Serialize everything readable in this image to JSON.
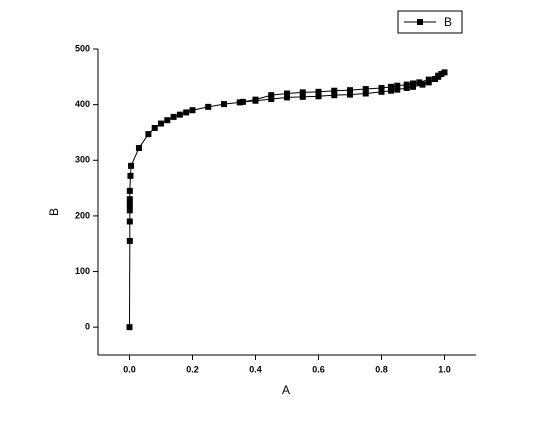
{
  "chart_data": {
    "type": "line",
    "x_label": "A",
    "y_label": "B",
    "xlim": [
      -0.1,
      1.1
    ],
    "ylim": [
      -50,
      500
    ],
    "xticks": [
      {
        "value": 0,
        "label": "0.0"
      },
      0.2,
      0.4,
      0.6,
      0.8,
      {
        "value": 1,
        "label": "1.0"
      }
    ],
    "yticks": [
      0,
      100,
      200,
      300,
      400,
      500
    ],
    "legend": "top-right",
    "series": [
      {
        "name": "B",
        "color": "#000000",
        "x": [
          0,
          0.001,
          0.001,
          0.001,
          0.001,
          0.001,
          0.001,
          0.003,
          0.005,
          0.03,
          0.06,
          0.08,
          0.1,
          0.12,
          0.14,
          0.16,
          0.18,
          0.2,
          0.25,
          0.3,
          0.35,
          0.4,
          0.45,
          0.5,
          0.55,
          0.6,
          0.65,
          0.7,
          0.75,
          0.8,
          0.83,
          0.85,
          0.88,
          0.9,
          0.93,
          0.95,
          0.97,
          0.98,
          0.99,
          1.0,
          0.98,
          0.95,
          0.92,
          0.9,
          0.88,
          0.85,
          0.83,
          0.8,
          0.75,
          0.7,
          0.65,
          0.6,
          0.55,
          0.5,
          0.45,
          0.4,
          0.36
        ],
        "values": [
          0,
          155,
          190,
          210,
          220,
          230,
          245,
          272,
          290,
          322,
          347,
          358,
          366,
          372,
          378,
          382,
          386,
          390,
          396,
          401,
          404,
          407,
          410,
          413,
          414,
          415,
          417,
          418,
          420,
          423,
          425,
          427,
          430,
          432,
          436,
          440,
          446,
          450,
          455,
          458,
          452,
          445,
          440,
          438,
          436,
          434,
          432,
          430,
          428,
          426,
          425,
          423,
          422,
          420,
          417,
          409,
          405
        ]
      }
    ]
  }
}
